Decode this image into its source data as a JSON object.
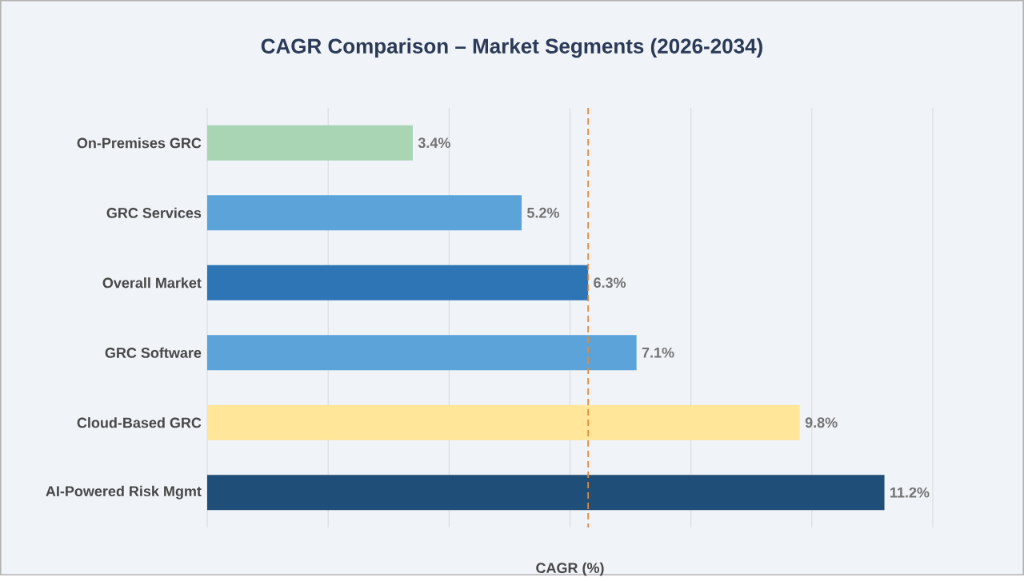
{
  "chart_data": {
    "type": "bar",
    "orientation": "horizontal",
    "title": "CAGR Comparison – Market Segments (2026-2034)",
    "xlabel": "CAGR (%)",
    "categories": [
      "On-Premises GRC",
      "GRC Services",
      "Overall Market",
      "GRC Software",
      "Cloud-Based GRC",
      "AI-Powered Risk Mgmt"
    ],
    "values": [
      3.4,
      5.2,
      6.3,
      7.1,
      9.8,
      11.2
    ],
    "colors": [
      "#a9d5b5",
      "#5ba3d9",
      "#2e75b6",
      "#5ba3d9",
      "#ffe699",
      "#1f4e79"
    ],
    "value_labels": [
      "3.4%",
      "5.2%",
      "6.3%",
      "7.1%",
      "9.8%",
      "11.2%"
    ],
    "xlim": [
      0,
      12
    ],
    "xticks": [
      {
        "value": 0,
        "label": null
      },
      {
        "value": 2,
        "label": null
      },
      {
        "value": 4,
        "label": null
      },
      {
        "value": 6,
        "label": null
      },
      {
        "value": 8,
        "label": null
      },
      {
        "value": 10,
        "label": null
      },
      {
        "value": 12,
        "label": null
      }
    ],
    "tick_labels": "y",
    "grid": "x",
    "ref_lines": [
      {
        "axis": "x",
        "value": 6.3,
        "color": "#e38b3c",
        "line_style": "dashed"
      }
    ]
  }
}
